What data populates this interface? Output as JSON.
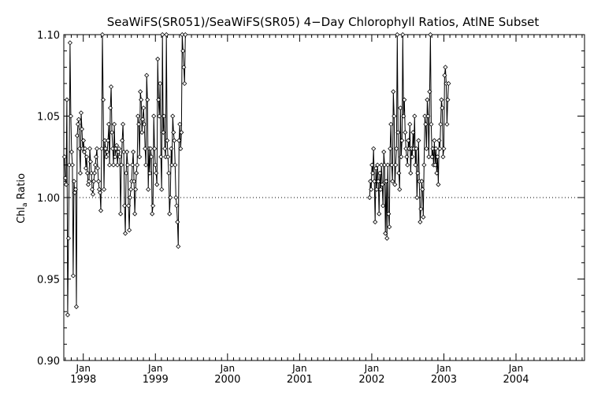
{
  "chart_data": {
    "type": "line",
    "title": "SeaWiFS(SR051)/SeaWiFS(SR05) 4−Day Chlorophyll Ratios, AtlNE Subset",
    "ylabel": "Chl",
    "ylabel_subscript": "a",
    "ylabel_suffix": "Ratio",
    "xlabel": "",
    "ylim": [
      0.9,
      1.1
    ],
    "xlim": [
      1997.73,
      2004.95
    ],
    "y_ticks": [
      "0.90",
      "0.95",
      "1.00",
      "1.05",
      "1.10"
    ],
    "x_ticks": [
      {
        "pos": 1998.0,
        "top": "Jan",
        "bottom": "1998"
      },
      {
        "pos": 1999.0,
        "top": "Jan",
        "bottom": "1999"
      },
      {
        "pos": 2000.0,
        "top": "Jan",
        "bottom": "2000"
      },
      {
        "pos": 2001.0,
        "top": "Jan",
        "bottom": "2001"
      },
      {
        "pos": 2002.0,
        "top": "Jan",
        "bottom": "2002"
      },
      {
        "pos": 2003.0,
        "top": "Jan",
        "bottom": "2003"
      },
      {
        "pos": 2004.0,
        "top": "Jan",
        "bottom": "2004"
      }
    ],
    "reference_line": 1.0,
    "marker": "diamond",
    "line_color": "#000000",
    "series": [
      {
        "name": "",
        "x_start": 1997.74,
        "x_step": 0.01095,
        "y_segments": [
          [
            1.025,
            1.012,
            1.008,
            1.06,
            0.928,
            0.975,
            1.02,
            1.095,
            1.05,
            1.028,
            1.02,
            0.952,
            1.01,
            1.003,
            1.005,
            0.933,
            1.038,
            1.045,
            1.048,
            1.03,
            1.015,
            1.052,
            1.042,
            1.03,
            1.035,
            1.028,
            1.03,
            1.018,
            1.025,
            1.015,
            1.008,
            1.01,
            1.03,
            1.022,
            1.015,
            1.005,
            1.002,
            1.01,
            1.015,
            1.02,
            1.025,
            1.03,
            1.018,
            1.01,
            1.005,
            1.003,
            0.992,
            1.03,
            1.1,
            1.06,
            1.005,
            1.035,
            1.03,
            1.025,
            1.028,
            1.035,
            1.045,
            1.02,
            1.055,
            1.068,
            1.04,
            1.03,
            1.02,
            1.045,
            1.025,
            1.03,
            1.032,
            1.02,
            1.028,
            1.03,
            1.025,
            0.99,
            1.02,
            1.035,
            1.045,
            1.028,
            0.995,
            0.978,
            1.015,
            1.028,
            1.02,
            0.995,
            0.98,
            1.0,
            1.005,
            1.01,
            1.02,
            1.028,
            1.01,
            0.99,
            1.005,
            1.015,
            1.02,
            1.05,
            1.045,
            1.025,
            1.065,
            1.06,
            1.04,
            1.048,
            1.055,
            1.045,
            1.03,
            1.02,
            1.075,
            1.06,
            1.005,
            1.03,
            1.015,
            1.03,
            1.025,
            0.99,
            0.995,
            1.05,
            1.03,
            1.02,
            1.015,
            1.008,
            1.085,
            1.06,
            1.05,
            1.07,
            1.025,
            1.005,
            1.1,
            1.04,
            1.05,
            1.03,
            1.025,
            1.1,
            1.035,
            1.025,
            1.015,
            0.99,
            1.0,
            1.03,
            1.02,
            1.05,
            1.04,
            1.035,
            1.02,
            1.0,
            0.995,
            0.985,
            0.97,
            1.035,
            1.045,
            1.03,
            1.04,
            1.1,
            1.09,
            1.08,
            1.07,
            1.1
          ]
        ],
        "segments_x_start": [
          1997.74
        ],
        "y_segment_2": [
          1.0,
          1.01,
          1.005,
          1.02,
          1.015,
          1.03,
          1.01,
          0.985,
          1.018,
          1.005,
          1.02,
          1.01,
          0.99,
          1.015,
          1.005,
          1.02,
          1.008,
          0.995,
          1.028,
          1.02,
          0.978,
          1.01,
          0.975,
          1.02,
          0.99,
          0.982,
          1.03,
          1.045,
          1.02,
          1.01,
          1.065,
          1.05,
          1.008,
          1.02,
          1.03,
          1.1,
          1.04,
          1.015,
          1.005,
          1.055,
          1.025,
          1.035,
          1.1,
          1.05,
          1.06,
          1.04,
          1.03,
          1.025,
          1.02,
          1.035,
          1.03,
          1.045,
          1.015,
          1.03,
          1.025,
          1.04,
          1.03,
          1.05,
          1.02,
          1.03,
          1.0,
          1.015,
          1.035,
          1.01,
          0.985,
          0.993,
          1.01,
          1.005,
          0.988,
          1.02,
          1.05,
          1.045,
          1.03,
          1.06,
          1.05,
          1.025,
          1.065,
          1.1,
          1.045,
          1.025,
          1.03,
          1.02,
          1.035,
          1.02,
          1.03,
          1.015,
          1.025,
          1.008,
          1.035,
          1.03,
          1.045,
          1.06,
          1.055,
          1.025,
          1.03,
          1.075,
          1.08,
          1.07,
          1.045,
          1.06,
          1.07
        ],
        "x_start_2": 2001.97
      }
    ]
  }
}
